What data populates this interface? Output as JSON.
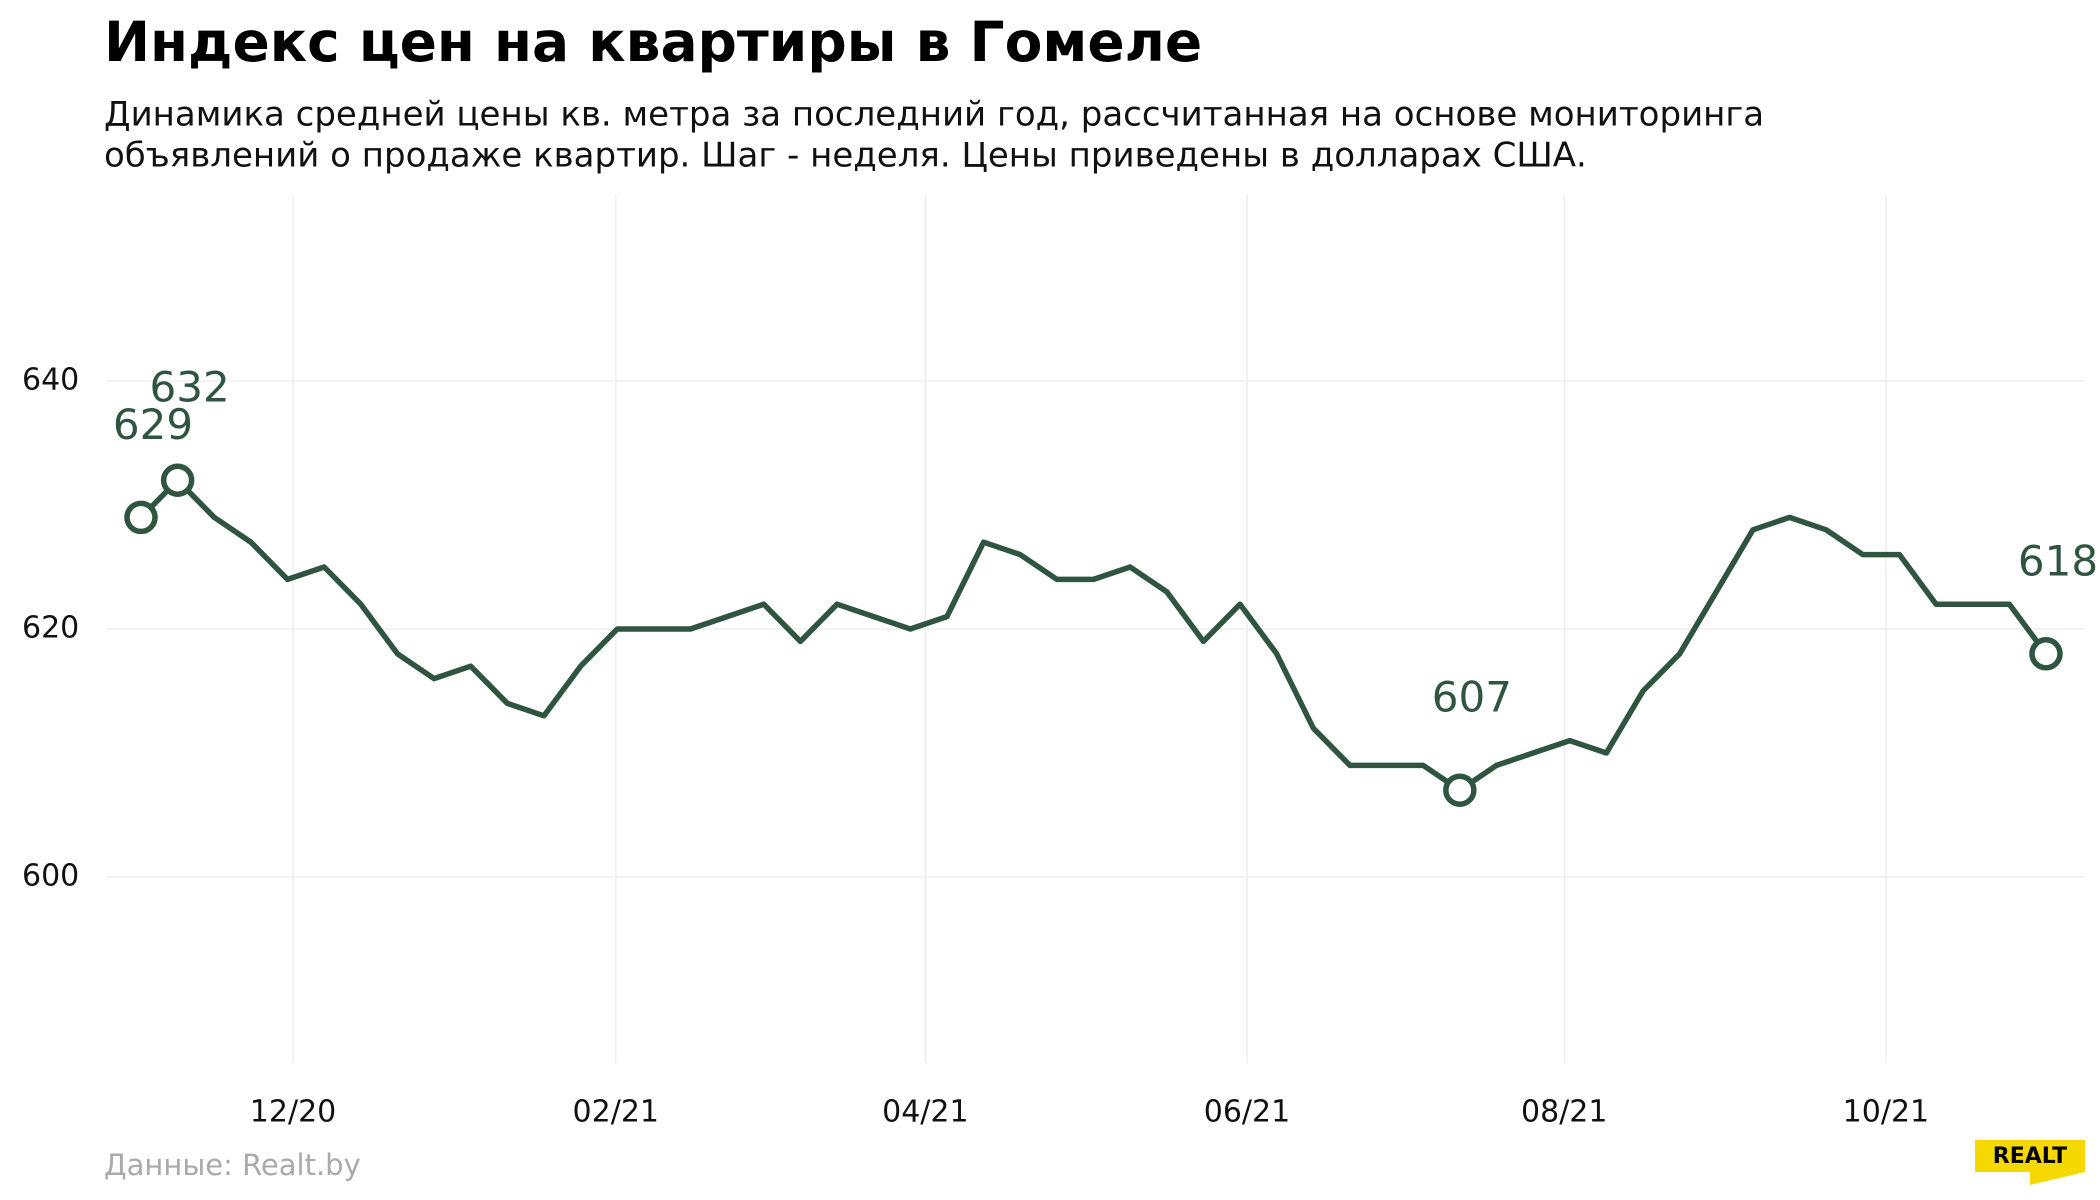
{
  "chart_data": {
    "type": "line",
    "title": "Индекс цен на квартиры в Гомеле",
    "subtitle": [
      "Динамика средней цены кв. метра за последний год, рассчитанная на основе мониторинга",
      "объявлений о продаже квартир. Шаг - неделя. Цены приведены в долларах США."
    ],
    "source": "Данные: Realt.by",
    "logo": "REALT",
    "color": "#2f5540",
    "values": [
      629,
      632,
      629,
      627,
      624,
      625,
      622,
      618,
      616,
      617,
      614,
      613,
      617,
      620,
      620,
      620,
      621,
      622,
      619,
      622,
      621,
      620,
      621,
      627,
      626,
      624,
      624,
      625,
      623,
      619,
      622,
      618,
      612,
      609,
      609,
      609,
      607,
      609,
      610,
      611,
      610,
      615,
      618,
      623,
      628,
      629,
      628,
      626,
      626,
      622,
      622,
      622,
      618
    ],
    "value_labels": [
      "629",
      "632",
      null,
      null,
      null,
      null,
      null,
      null,
      null,
      null,
      null,
      null,
      null,
      null,
      null,
      null,
      null,
      null,
      null,
      null,
      null,
      null,
      null,
      null,
      null,
      null,
      null,
      null,
      null,
      null,
      null,
      null,
      null,
      null,
      null,
      null,
      "607",
      null,
      null,
      null,
      null,
      null,
      null,
      null,
      null,
      null,
      null,
      null,
      null,
      null,
      null,
      null,
      "618"
    ],
    "xlim": [
      0,
      52
    ],
    "xticks": [
      {
        "value": 4.15,
        "label": "12/20"
      },
      {
        "value": 12.96,
        "label": "02/21"
      },
      {
        "value": 21.41,
        "label": "04/21"
      },
      {
        "value": 30.19,
        "label": "06/21"
      },
      {
        "value": 38.85,
        "label": "08/21"
      },
      {
        "value": 47.63,
        "label": "10/21"
      }
    ],
    "ylim": [
      585,
      655
    ],
    "yticks": [
      600,
      620,
      640
    ],
    "grid": true
  }
}
